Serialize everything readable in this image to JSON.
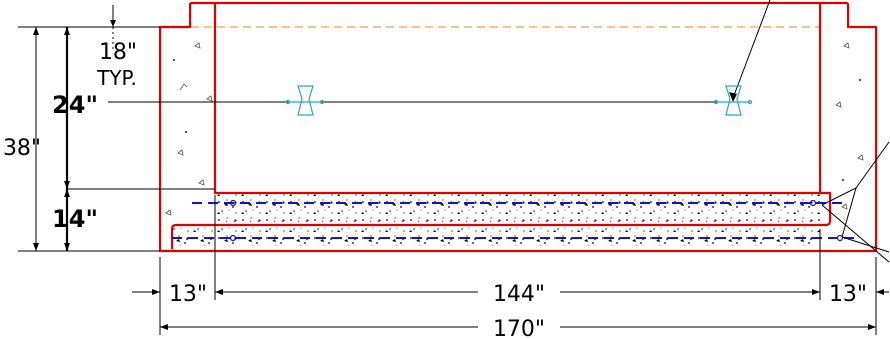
{
  "dimensions": {
    "left_18_typ_value": "18\"",
    "left_18_typ_note": "TYP.",
    "left_24": "24\"",
    "left_38": "38\"",
    "left_14": "14\"",
    "bottom_13_left": "13\"",
    "bottom_144": "144\"",
    "bottom_13_right": "13\"",
    "bottom_170": "170\""
  },
  "colors": {
    "outline": "#e10000",
    "rebar": "#1010e0",
    "hidden_line": "#f0a040",
    "anchor": "#2aa0d8",
    "dims": "#000000"
  }
}
